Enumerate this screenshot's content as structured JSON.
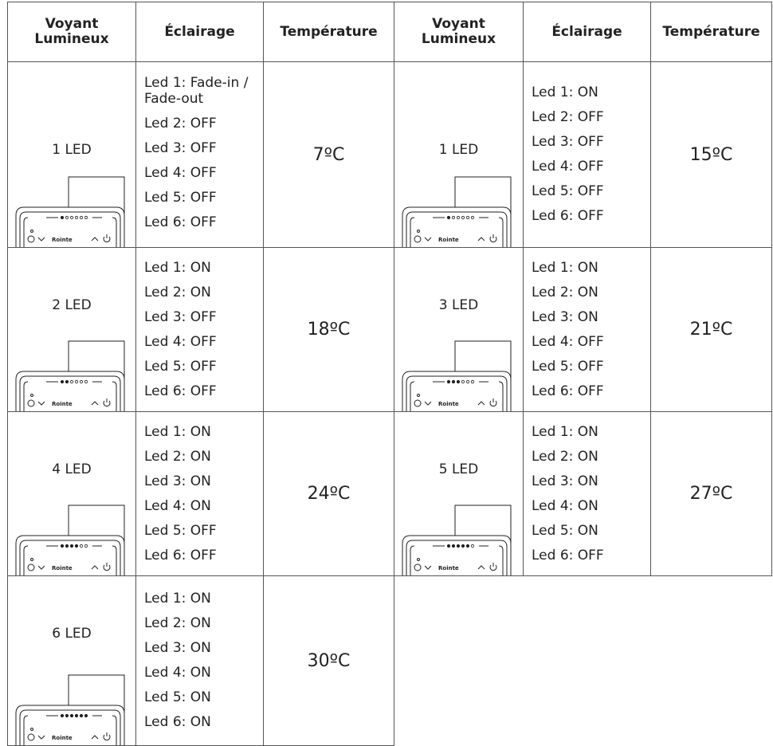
{
  "device_brand": "Rointe",
  "table": {
    "header": [
      "Voyant Lumineux",
      "Éclairage",
      "Température",
      "Voyant Lumineux",
      "Éclairage",
      "Température"
    ],
    "rows": [
      [
        "1 LED",
        [
          "Led 1: Fade-in / Fade-out",
          "Led 2: OFF",
          "Led 3: OFF",
          "Led 4: OFF",
          "Led 5: OFF",
          "Led 6: OFF"
        ],
        "7ºC",
        "1 LED",
        [
          "Led 1: ON",
          "Led 2: OFF",
          "Led 3: OFF",
          "Led 4: OFF",
          "Led 5: OFF",
          "Led 6: OFF"
        ],
        "15ºC"
      ],
      [
        "2 LED",
        [
          "Led 1: ON",
          "Led 2: ON",
          "Led 3: OFF",
          "Led 4: OFF",
          "Led 5: OFF",
          "Led 6: OFF"
        ],
        "18ºC",
        "3 LED",
        [
          "Led 1: ON",
          "Led 2: ON",
          "Led 3: ON",
          "Led 4: OFF",
          "Led 5: OFF",
          "Led 6: OFF"
        ],
        "21ºC"
      ],
      [
        "4 LED",
        [
          "Led 1: ON",
          "Led 2: ON",
          "Led 3: ON",
          "Led 4: ON",
          "Led 5: OFF",
          "Led 6: OFF"
        ],
        "24ºC",
        "5 LED",
        [
          "Led 1: ON",
          "Led 2: ON",
          "Led 3: ON",
          "Led 4: ON",
          "Led 5: ON",
          "Led 6: OFF"
        ],
        "27ºC"
      ],
      [
        "6 LED",
        [
          "Led 1: ON",
          "Led 2: ON",
          "Led 3: ON",
          "Led 4: ON",
          "Led 5: ON",
          "Led 6: ON"
        ],
        "30ºC"
      ]
    ]
  }
}
